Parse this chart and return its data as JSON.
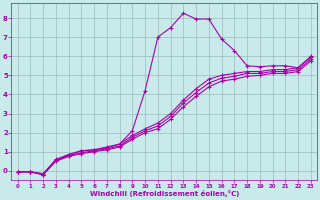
{
  "xlabel": "Windchill (Refroidissement éolien,°C)",
  "bg_color": "#c8eaea",
  "line_color": "#aa00aa",
  "grid_color": "#99bbbb",
  "xlim": [
    -0.5,
    23.5
  ],
  "ylim": [
    -0.5,
    8.8
  ],
  "xticks": [
    0,
    1,
    2,
    3,
    4,
    5,
    6,
    7,
    8,
    9,
    10,
    11,
    12,
    13,
    14,
    15,
    16,
    17,
    18,
    19,
    20,
    21,
    22,
    23
  ],
  "yticks": [
    0,
    1,
    2,
    3,
    4,
    5,
    6,
    7,
    8
  ],
  "line_spike_x": [
    0,
    1,
    2,
    3,
    4,
    5,
    6,
    7,
    8,
    9,
    10,
    11,
    12,
    13,
    14,
    15,
    16,
    17,
    18,
    19,
    20,
    21,
    22,
    23
  ],
  "line_spike_y": [
    -0.05,
    -0.05,
    -0.2,
    0.55,
    0.85,
    1.05,
    1.1,
    1.25,
    1.4,
    2.1,
    4.2,
    7.0,
    7.5,
    8.25,
    7.95,
    7.95,
    6.9,
    6.3,
    5.5,
    5.45,
    5.5,
    5.5,
    5.4,
    6.0
  ],
  "line2_x": [
    0,
    1,
    2,
    3,
    4,
    5,
    6,
    7,
    8,
    9,
    10,
    11,
    12,
    13,
    14,
    15,
    16,
    17,
    18,
    19,
    20,
    21,
    22,
    23
  ],
  "line2_y": [
    -0.05,
    -0.05,
    -0.15,
    0.6,
    0.85,
    1.05,
    1.1,
    1.2,
    1.4,
    1.85,
    2.2,
    2.5,
    3.0,
    3.7,
    4.3,
    4.8,
    5.0,
    5.1,
    5.2,
    5.2,
    5.3,
    5.3,
    5.4,
    5.95
  ],
  "line3_x": [
    0,
    1,
    2,
    3,
    4,
    5,
    6,
    7,
    8,
    9,
    10,
    11,
    12,
    13,
    14,
    15,
    16,
    17,
    18,
    19,
    20,
    21,
    22,
    23
  ],
  "line3_y": [
    -0.05,
    -0.05,
    -0.2,
    0.55,
    0.8,
    0.95,
    1.05,
    1.15,
    1.3,
    1.75,
    2.1,
    2.35,
    2.85,
    3.55,
    4.1,
    4.6,
    4.85,
    4.95,
    5.1,
    5.1,
    5.2,
    5.2,
    5.3,
    5.85
  ],
  "line4_x": [
    0,
    1,
    2,
    3,
    4,
    5,
    6,
    7,
    8,
    9,
    10,
    11,
    12,
    13,
    14,
    15,
    16,
    17,
    18,
    19,
    20,
    21,
    22,
    23
  ],
  "line4_y": [
    -0.05,
    -0.05,
    -0.2,
    0.5,
    0.75,
    0.9,
    1.0,
    1.1,
    1.25,
    1.65,
    2.0,
    2.2,
    2.7,
    3.35,
    3.9,
    4.4,
    4.7,
    4.8,
    4.95,
    5.0,
    5.1,
    5.1,
    5.2,
    5.75
  ]
}
